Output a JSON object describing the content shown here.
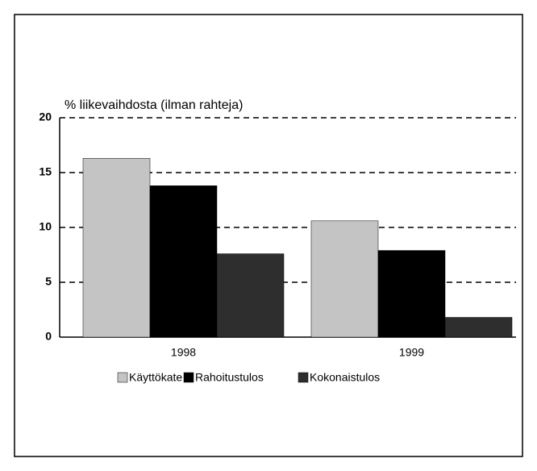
{
  "chart_data": {
    "type": "bar",
    "title": "% liikevaihdosta (ilman rahteja)",
    "categories": [
      "1998",
      "1999"
    ],
    "series": [
      {
        "name": "Käyttökate",
        "color": "#c4c4c4",
        "values": [
          16.3,
          10.6
        ]
      },
      {
        "name": "Rahoitustulos",
        "color": "#000000",
        "values": [
          13.8,
          7.9
        ]
      },
      {
        "name": "Kokonaistulos",
        "color": "#2e2e2e",
        "values": [
          7.6,
          1.8
        ]
      }
    ],
    "ylim": [
      0,
      20
    ],
    "yticks": [
      0,
      5,
      10,
      15,
      20
    ],
    "grid": true,
    "legend": "bottom"
  }
}
